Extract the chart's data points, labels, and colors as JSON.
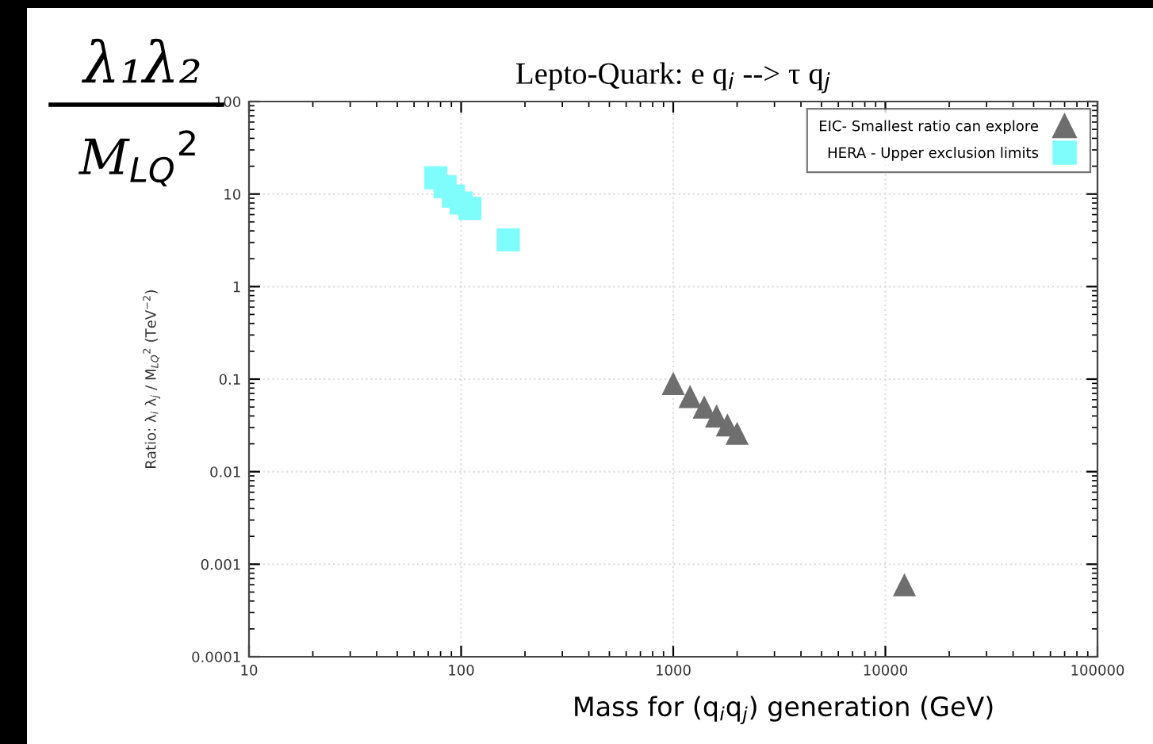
{
  "chart_data": {
    "type": "scatter",
    "title": "Lepto-Quark: e q$_{i}$ --> τ q$_{j}$",
    "xlabel": "Mass for (q$_{i}$q$_{j}$) generation (GeV)",
    "ylabel": "Ratio: λ$_{i}$ λ$_{j}$ / M$_{LQ}$$^{2}$ (TeV$^{−2}$)",
    "annotations": [
      "λ₁λ₂",
      "M$_{LQ}$$^{2}$"
    ],
    "log": "xy",
    "xlim": [
      10,
      100000
    ],
    "ylim": [
      0.0001,
      100
    ],
    "xticks": [
      10,
      100,
      1000,
      10000,
      100000
    ],
    "yticks": [
      0.0001,
      0.001,
      0.01,
      0.1,
      1,
      10,
      100
    ],
    "grid": true,
    "legend": "top right",
    "series": [
      {
        "name": "EIC- Smallest ratio can explore",
        "color": "#6e6e6e",
        "marker": "triangle",
        "x": [
          1000,
          1200,
          1400,
          1600,
          1800,
          2000,
          12300
        ],
        "values": [
          0.09,
          0.065,
          0.05,
          0.04,
          0.032,
          0.026,
          0.0006
        ]
      },
      {
        "name": "HERA - Upper exclusion limits",
        "color": "#7ffcfc",
        "marker": "square",
        "x": [
          76,
          84,
          92,
          100,
          110,
          167
        ],
        "values": [
          15,
          12,
          9.5,
          8,
          7,
          3.2
        ]
      }
    ]
  }
}
